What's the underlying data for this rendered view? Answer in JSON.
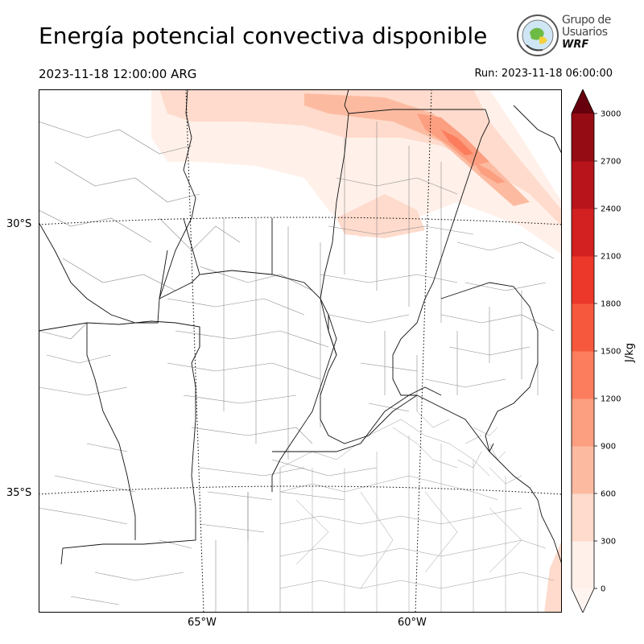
{
  "header": {
    "title": "Energía potencial convectiva disponible",
    "valid_time": "2023-11-18 12:00:00 ARG",
    "run_time": "Run: 2023-11-18 06:00:00"
  },
  "logo": {
    "line1": "Grupo de",
    "line2": "Usuarios",
    "line3": "WRF"
  },
  "map": {
    "lat_labels": [
      {
        "value": -30,
        "text": "30°S"
      },
      {
        "value": -35,
        "text": "35°S"
      }
    ],
    "lon_labels": [
      {
        "value": -65,
        "text": "65°W"
      },
      {
        "value": -60,
        "text": "60°W"
      }
    ],
    "field": "CAPE",
    "high_values_region": "north-northeast"
  },
  "colorbar": {
    "unit": "J/kg",
    "ticks": [
      "0",
      "300",
      "600",
      "900",
      "1200",
      "1500",
      "1800",
      "2100",
      "2400",
      "2700",
      "3000"
    ],
    "colors": [
      "#fff0e9",
      "#fedbcc",
      "#fcbba1",
      "#fc9e80",
      "#fb7d5d",
      "#f6583e",
      "#eb382a",
      "#d32020",
      "#b7151b",
      "#950c14",
      "#67000d"
    ],
    "extend_low_color": "#fff5f0",
    "extend_high_color": "#67000d"
  }
}
